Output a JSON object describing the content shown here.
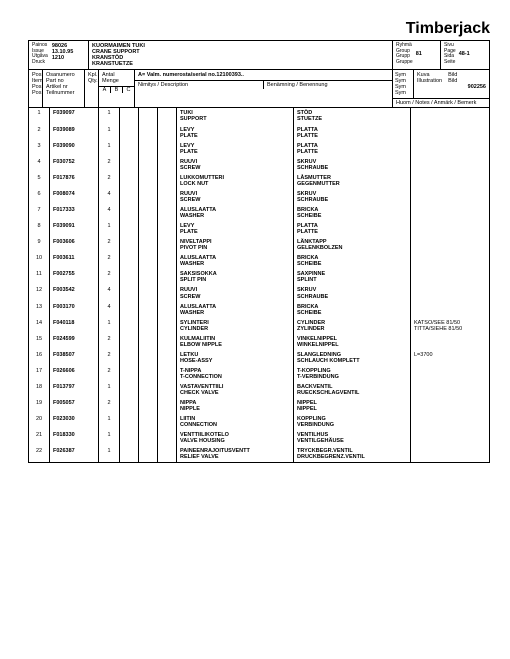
{
  "brand": "Timberjack",
  "header": {
    "issue_labels": "Painos\nIssue\nUtgåva\nDruck",
    "issue_no": "98026",
    "issue_date": "13.10.95",
    "issue_model": "1210",
    "title": "KUORMAIMEN TUKI\nCRANE SUPPORT\nKRANSTÖD\nKRANSTUETZE",
    "group_labels": "Ryhmä\nGroup\nGrupp\nGruppe",
    "group_no": "81",
    "page_labels": "Sivu\nPage\nSida\nSeite",
    "page_no": "48-1"
  },
  "mid": {
    "pos_labels": "Pos.\nItem\nPos.\nPos.",
    "part_labels": "Osanumero\nPart no\nArtikel nr\nTeilnummer",
    "qty_labels": "Kpl.\nQty.",
    "antal_labels": "Antal\nMenge",
    "serial": "A= Valm. numerosta/serial no.12100393..",
    "sym_labels": "Sym\nSym\nSym\nSym",
    "kuva_labels": "Kuva\nIllustration",
    "bild_labels": "Bild\nBild",
    "extra_no": "902256",
    "abc": [
      "A",
      "B",
      "C"
    ],
    "desc_label": "Nimitys / Description",
    "ben_label": "Benämning / Benennung",
    "note_label": "Huom / Notes / Anmärk / Bemerk"
  },
  "rows": [
    {
      "pos": "1",
      "pn": "F039097",
      "qty": "1",
      "d": "TUKI\nSUPPORT",
      "b": "STÖD\nSTUETZE",
      "n": ""
    },
    {
      "pos": "2",
      "pn": "F039089",
      "qty": "1",
      "d": "LEVY\nPLATE",
      "b": "PLATTA\nPLATTE",
      "n": ""
    },
    {
      "pos": "3",
      "pn": "F039090",
      "qty": "1",
      "d": "LEVY\nPLATE",
      "b": "PLATTA\nPLATTE",
      "n": ""
    },
    {
      "pos": "4",
      "pn": "F030752",
      "qty": "2",
      "d": "RUUVI\nSCREW",
      "b": "SKRUV\nSCHRAUBE",
      "n": ""
    },
    {
      "pos": "5",
      "pn": "F017876",
      "qty": "2",
      "d": "LUKKOMUTTERI\nLOCK NUT",
      "b": "LÅSMUTTER\nGEGENMUTTER",
      "n": ""
    },
    {
      "pos": "6",
      "pn": "F008074",
      "qty": "4",
      "d": "RUUVI\nSCREW",
      "b": "SKRUV\nSCHRAUBE",
      "n": ""
    },
    {
      "pos": "7",
      "pn": "F017333",
      "qty": "4",
      "d": "ALUSLAATTA\nWASHER",
      "b": "BRICKA\nSCHEIBE",
      "n": ""
    },
    {
      "pos": "8",
      "pn": "F039091",
      "qty": "1",
      "d": "LEVY\nPLATE",
      "b": "PLATTA\nPLATTE",
      "n": ""
    },
    {
      "pos": "9",
      "pn": "F003606",
      "qty": "2",
      "d": "NIVELTAPPI\nPIVOT PIN",
      "b": "LÄNKTAPP\nGELENKBOLZEN",
      "n": ""
    },
    {
      "pos": "10",
      "pn": "F003611",
      "qty": "2",
      "d": "ALUSLAATTA\nWASHER",
      "b": "BRICKA\nSCHEIBE",
      "n": ""
    },
    {
      "pos": "11",
      "pn": "F002755",
      "qty": "2",
      "d": "SAKSISOKKA\nSPLIT PIN",
      "b": "SAXPINNE\nSPLINT",
      "n": ""
    },
    {
      "pos": "12",
      "pn": "F003542",
      "qty": "4",
      "d": "RUUVI\nSCREW",
      "b": "SKRUV\nSCHRAUBE",
      "n": ""
    },
    {
      "pos": "13",
      "pn": "F003170",
      "qty": "4",
      "d": "ALUSLAATTA\nWASHER",
      "b": "BRICKA\nSCHEIBE",
      "n": ""
    },
    {
      "pos": "14",
      "pn": "F040118",
      "qty": "1",
      "d": "SYLINTERI\nCYLINDER",
      "b": "CYLINDER\nZYLINDER",
      "n": "KATSO/SEE 81/50\nTITTA/SIEHE 81/50"
    },
    {
      "pos": "15",
      "pn": "F024599",
      "qty": "2",
      "d": "KULMALIITIN\nELBOW NIPPLE",
      "b": "VINKELNIPPEL\nWINKELNIPPEL",
      "n": ""
    },
    {
      "pos": "16",
      "pn": "F038507",
      "qty": "2",
      "d": "LETKU\nHOSE-ASSY",
      "b": "SLANGLEDNING\nSCHLAUCH KOMPLETT",
      "n": "L=3700"
    },
    {
      "pos": "17",
      "pn": "F026606",
      "qty": "2",
      "d": "T-NIPPA\nT-CONNECTION",
      "b": "T-KOPPLING\nT-VERBINDUNG",
      "n": ""
    },
    {
      "pos": "18",
      "pn": "F013797",
      "qty": "1",
      "d": "VASTAVENTTIILI\nCHECK VALVE",
      "b": "BACKVENTIL\nRUECKSCHLAGVENTIL",
      "n": ""
    },
    {
      "pos": "19",
      "pn": "F005057",
      "qty": "2",
      "d": "NIPPA\nNIPPLE",
      "b": "NIPPEL\nNIPPEL",
      "n": ""
    },
    {
      "pos": "20",
      "pn": "F023030",
      "qty": "1",
      "d": "LIITIN\nCONNECTION",
      "b": "KOPPLING\nVERBINDUNG",
      "n": ""
    },
    {
      "pos": "21",
      "pn": "F018330",
      "qty": "1",
      "d": "VENTTIILIKOTELO\nVALVE HOUSING",
      "b": "VENTILHUS\nVENTILGEHÄUSE",
      "n": ""
    },
    {
      "pos": "22",
      "pn": "F026387",
      "qty": "1",
      "d": "PAINEENRAJOITUSVENTT\nRELIEF VALVE",
      "b": "TRYCKBEGR.VENTIL\nDRUCKBEGRENZ.VENTIL",
      "n": ""
    }
  ]
}
